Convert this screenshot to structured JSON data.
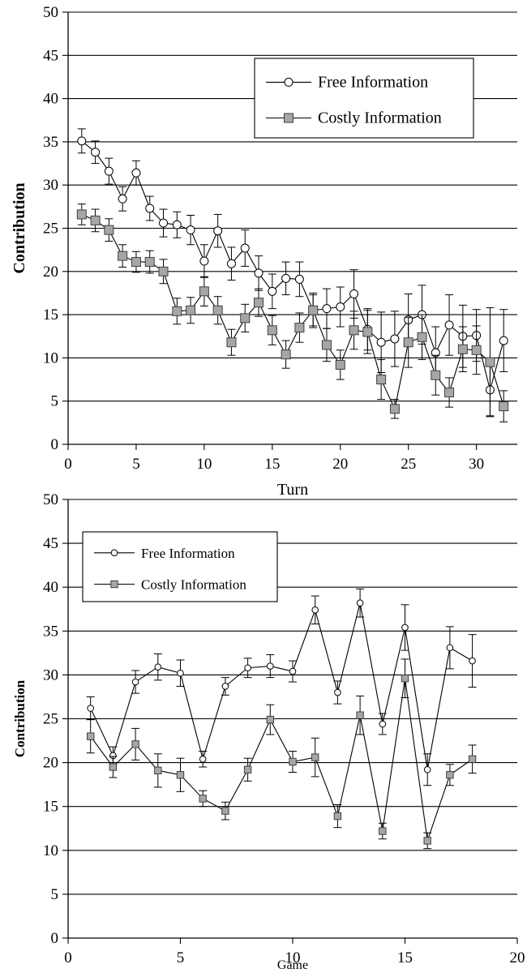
{
  "chart_data": [
    {
      "type": "line",
      "xlabel": "Turn",
      "ylabel": "Contribution",
      "xlim": [
        0,
        33
      ],
      "ylim": [
        0,
        50
      ],
      "x_ticks": [
        0,
        5,
        10,
        15,
        20,
        25,
        30
      ],
      "y_ticks": [
        0,
        5,
        10,
        15,
        20,
        25,
        30,
        35,
        40,
        45,
        50
      ],
      "grid": "horizontal",
      "legend_position": "top-right",
      "x": [
        1,
        2,
        3,
        4,
        5,
        6,
        7,
        8,
        9,
        10,
        11,
        12,
        13,
        14,
        15,
        16,
        17,
        18,
        19,
        20,
        21,
        22,
        23,
        24,
        25,
        26,
        27,
        28,
        29,
        30,
        31,
        32
      ],
      "series": [
        {
          "name": "Free Information",
          "marker": "open-circle",
          "color": "#ffffff",
          "values": [
            35.1,
            33.8,
            31.6,
            28.4,
            31.4,
            27.3,
            25.6,
            25.4,
            24.8,
            21.2,
            24.7,
            20.9,
            22.7,
            19.8,
            17.7,
            19.2,
            19.1,
            15.5,
            15.7,
            15.9,
            17.4,
            13.3,
            11.8,
            12.2,
            14.4,
            15.0,
            10.6,
            13.8,
            12.5,
            12.6,
            6.3,
            12.0
          ],
          "errors": [
            1.4,
            1.3,
            1.5,
            1.4,
            1.4,
            1.4,
            1.6,
            1.5,
            1.7,
            1.9,
            1.9,
            1.9,
            2.1,
            2.0,
            2.0,
            1.9,
            2.0,
            2.0,
            2.3,
            2.3,
            2.8,
            2.4,
            3.5,
            3.2,
            3.0,
            3.4,
            3.0,
            3.5,
            3.6,
            3.0,
            3.0,
            3.6
          ]
        },
        {
          "name": "Costly Information",
          "marker": "square",
          "color": "#a6a6a6",
          "values": [
            26.6,
            25.9,
            24.8,
            21.8,
            21.1,
            21.1,
            20.0,
            15.4,
            15.5,
            17.7,
            15.5,
            11.8,
            14.6,
            16.4,
            13.2,
            10.4,
            13.5,
            15.5,
            11.5,
            9.2,
            13.2,
            13.0,
            7.5,
            4.1,
            11.8,
            12.4,
            8.0,
            6.0,
            11.0,
            10.9,
            9.5,
            4.4
          ],
          "errors": [
            1.2,
            1.3,
            1.3,
            1.3,
            1.2,
            1.3,
            1.4,
            1.5,
            1.5,
            1.7,
            1.6,
            1.5,
            1.6,
            1.6,
            1.7,
            1.6,
            1.7,
            1.8,
            1.9,
            1.7,
            2.2,
            2.5,
            2.3,
            1.1,
            2.9,
            2.6,
            2.3,
            1.7,
            2.6,
            2.8,
            6.3,
            1.8
          ]
        }
      ]
    },
    {
      "type": "line",
      "xlabel": "Game",
      "ylabel": "Contribution",
      "xlim": [
        0,
        20
      ],
      "ylim": [
        0,
        50
      ],
      "x_ticks": [
        0,
        5,
        10,
        15,
        20
      ],
      "y_ticks": [
        0,
        5,
        10,
        15,
        20,
        25,
        30,
        35,
        40,
        45,
        50
      ],
      "grid": "horizontal",
      "legend_position": "top-left",
      "x": [
        1,
        2,
        3,
        4,
        5,
        6,
        7,
        8,
        9,
        10,
        11,
        12,
        13,
        14,
        15,
        16,
        17,
        18
      ],
      "series": [
        {
          "name": "Free Information",
          "marker": "open-circle",
          "color": "#ffffff",
          "values": [
            26.2,
            20.8,
            29.2,
            30.9,
            30.2,
            20.4,
            28.7,
            30.8,
            31.0,
            30.4,
            37.4,
            28.0,
            38.2,
            24.4,
            35.4,
            19.2,
            33.1,
            31.6
          ],
          "errors": [
            1.3,
            1.0,
            1.3,
            1.5,
            1.5,
            0.9,
            1.0,
            1.1,
            1.3,
            1.2,
            1.6,
            1.3,
            1.6,
            1.2,
            2.6,
            1.8,
            2.4,
            3.0
          ]
        },
        {
          "name": "Costly Information",
          "marker": "square",
          "color": "#a6a6a6",
          "values": [
            23.0,
            19.5,
            22.1,
            19.1,
            18.6,
            15.9,
            14.5,
            19.2,
            24.9,
            20.1,
            20.6,
            13.9,
            25.4,
            12.2,
            29.6,
            11.1,
            18.6,
            20.4
          ],
          "errors": [
            1.9,
            1.2,
            1.8,
            1.9,
            1.9,
            0.9,
            1.0,
            1.3,
            1.7,
            1.2,
            2.2,
            1.3,
            2.2,
            0.9,
            2.2,
            0.9,
            1.2,
            1.6
          ]
        }
      ]
    }
  ]
}
